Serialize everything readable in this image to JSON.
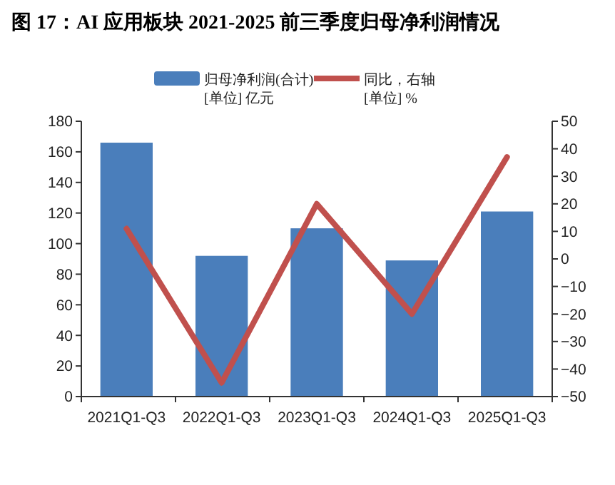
{
  "chart_data": {
    "type": "bar",
    "title": "图 17：AI 应用板块 2021-2025 前三季度归母净利润情况",
    "categories": [
      "2021Q1-Q3",
      "2022Q1-Q3",
      "2023Q1-Q3",
      "2024Q1-Q3",
      "2025Q1-Q3"
    ],
    "series": [
      {
        "name": "归母净利润(合计)\n[单位] 亿元",
        "color": "#4a7ebb",
        "values": [
          166,
          92,
          110,
          89,
          121
        ]
      },
      {
        "name": "同比，右轴\n[单位] %",
        "color": "#c0504d",
        "type": "line",
        "axis": "y2",
        "values": [
          11,
          -45,
          20,
          -20,
          37
        ]
      }
    ],
    "ylim": [
      0,
      180
    ],
    "yticks": [
      0,
      20,
      40,
      60,
      80,
      100,
      120,
      140,
      160,
      180
    ],
    "y2lim": [
      -50,
      50
    ],
    "y2ticks": [
      -50,
      -40,
      -30,
      -20,
      -10,
      0,
      10,
      20,
      30,
      40,
      50
    ],
    "grid": false,
    "legend": "top"
  }
}
